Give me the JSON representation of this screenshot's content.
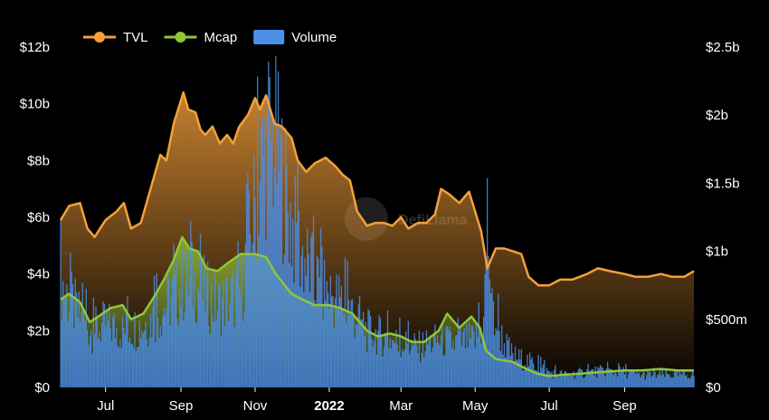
{
  "chart_data": {
    "type": "area",
    "watermark": "DefiLlama",
    "legend_position": "top-left",
    "legend": [
      {
        "name": "TVL",
        "color": "#f5a03a",
        "kind": "line"
      },
      {
        "name": "Mcap",
        "color": "#8fc63a",
        "kind": "line"
      },
      {
        "name": "Volume",
        "color": "#4c8fe8",
        "kind": "bar"
      }
    ],
    "x_range": [
      "2021-05-25",
      "2022-10-28"
    ],
    "x_ticks": [
      {
        "label": "Jul",
        "date": "2021-07-01",
        "bold": false
      },
      {
        "label": "Sep",
        "date": "2021-09-01",
        "bold": false
      },
      {
        "label": "Nov",
        "date": "2021-11-01",
        "bold": false
      },
      {
        "label": "2022",
        "date": "2022-01-01",
        "bold": true
      },
      {
        "label": "Mar",
        "date": "2022-03-01",
        "bold": false
      },
      {
        "label": "May",
        "date": "2022-05-01",
        "bold": false
      },
      {
        "label": "Jul",
        "date": "2022-07-01",
        "bold": false
      },
      {
        "label": "Sep",
        "date": "2022-09-01",
        "bold": false
      }
    ],
    "y_left": {
      "range": [
        0,
        12
      ],
      "unit": "billion USD",
      "ticks": [
        {
          "v": 0,
          "label": "$0"
        },
        {
          "v": 2,
          "label": "$2b"
        },
        {
          "v": 4,
          "label": "$4b"
        },
        {
          "v": 6,
          "label": "$6b"
        },
        {
          "v": 8,
          "label": "$8b"
        },
        {
          "v": 10,
          "label": "$10b"
        },
        {
          "v": 12,
          "label": "$12b"
        }
      ]
    },
    "y_right": {
      "range": [
        0,
        2.5
      ],
      "unit": "billion USD",
      "ticks": [
        {
          "v": 0,
          "label": "$0"
        },
        {
          "v": 0.5,
          "label": "$500m"
        },
        {
          "v": 1,
          "label": "$1b"
        },
        {
          "v": 1.5,
          "label": "$1.5b"
        },
        {
          "v": 2,
          "label": "$2b"
        },
        {
          "v": 2.5,
          "label": "$2.5b"
        }
      ]
    },
    "series": [
      {
        "name": "TVL",
        "axis": "left",
        "color": "#f5a03a",
        "points": [
          [
            "2021-05-25",
            5.9
          ],
          [
            "2021-06-01",
            6.4
          ],
          [
            "2021-06-10",
            6.5
          ],
          [
            "2021-06-16",
            5.6
          ],
          [
            "2021-06-22",
            5.3
          ],
          [
            "2021-07-01",
            5.9
          ],
          [
            "2021-07-10",
            6.2
          ],
          [
            "2021-07-16",
            6.5
          ],
          [
            "2021-07-22",
            5.6
          ],
          [
            "2021-07-30",
            5.8
          ],
          [
            "2021-08-07",
            7.0
          ],
          [
            "2021-08-15",
            8.2
          ],
          [
            "2021-08-20",
            8.0
          ],
          [
            "2021-08-26",
            9.3
          ],
          [
            "2021-09-03",
            10.4
          ],
          [
            "2021-09-07",
            9.8
          ],
          [
            "2021-09-13",
            9.7
          ],
          [
            "2021-09-17",
            9.1
          ],
          [
            "2021-09-21",
            8.9
          ],
          [
            "2021-09-27",
            9.2
          ],
          [
            "2021-10-03",
            8.6
          ],
          [
            "2021-10-09",
            8.9
          ],
          [
            "2021-10-14",
            8.6
          ],
          [
            "2021-10-19",
            9.2
          ],
          [
            "2021-10-26",
            9.6
          ],
          [
            "2021-11-01",
            10.2
          ],
          [
            "2021-11-05",
            9.8
          ],
          [
            "2021-11-10",
            10.3
          ],
          [
            "2021-11-17",
            9.3
          ],
          [
            "2021-11-23",
            9.2
          ],
          [
            "2021-12-01",
            8.8
          ],
          [
            "2021-12-06",
            8.0
          ],
          [
            "2021-12-13",
            7.6
          ],
          [
            "2021-12-20",
            7.9
          ],
          [
            "2021-12-29",
            8.1
          ],
          [
            "2022-01-06",
            7.8
          ],
          [
            "2022-01-12",
            7.5
          ],
          [
            "2022-01-18",
            7.3
          ],
          [
            "2022-01-24",
            6.2
          ],
          [
            "2022-02-01",
            5.7
          ],
          [
            "2022-02-08",
            5.8
          ],
          [
            "2022-02-15",
            5.8
          ],
          [
            "2022-02-22",
            5.7
          ],
          [
            "2022-03-01",
            6.0
          ],
          [
            "2022-03-07",
            5.6
          ],
          [
            "2022-03-15",
            5.8
          ],
          [
            "2022-03-22",
            5.8
          ],
          [
            "2022-03-29",
            6.1
          ],
          [
            "2022-04-03",
            7.0
          ],
          [
            "2022-04-10",
            6.8
          ],
          [
            "2022-04-18",
            6.5
          ],
          [
            "2022-04-26",
            6.9
          ],
          [
            "2022-05-01",
            6.2
          ],
          [
            "2022-05-06",
            5.5
          ],
          [
            "2022-05-11",
            4.2
          ],
          [
            "2022-05-18",
            4.9
          ],
          [
            "2022-05-25",
            4.9
          ],
          [
            "2022-06-01",
            4.8
          ],
          [
            "2022-06-08",
            4.7
          ],
          [
            "2022-06-14",
            3.9
          ],
          [
            "2022-06-22",
            3.6
          ],
          [
            "2022-07-01",
            3.6
          ],
          [
            "2022-07-10",
            3.8
          ],
          [
            "2022-07-20",
            3.8
          ],
          [
            "2022-08-01",
            4.0
          ],
          [
            "2022-08-10",
            4.2
          ],
          [
            "2022-08-20",
            4.1
          ],
          [
            "2022-09-01",
            4.0
          ],
          [
            "2022-09-10",
            3.9
          ],
          [
            "2022-09-20",
            3.9
          ],
          [
            "2022-10-01",
            4.0
          ],
          [
            "2022-10-10",
            3.9
          ],
          [
            "2022-10-20",
            3.9
          ],
          [
            "2022-10-28",
            4.1
          ]
        ]
      },
      {
        "name": "Mcap",
        "axis": "left",
        "color": "#8fc63a",
        "points": [
          [
            "2021-05-25",
            3.1
          ],
          [
            "2021-06-01",
            3.3
          ],
          [
            "2021-06-10",
            3.0
          ],
          [
            "2021-06-18",
            2.3
          ],
          [
            "2021-06-25",
            2.5
          ],
          [
            "2021-07-05",
            2.8
          ],
          [
            "2021-07-15",
            2.9
          ],
          [
            "2021-07-22",
            2.4
          ],
          [
            "2021-08-01",
            2.6
          ],
          [
            "2021-08-10",
            3.2
          ],
          [
            "2021-08-18",
            3.8
          ],
          [
            "2021-08-26",
            4.5
          ],
          [
            "2021-09-02",
            5.3
          ],
          [
            "2021-09-08",
            4.9
          ],
          [
            "2021-09-15",
            4.8
          ],
          [
            "2021-09-22",
            4.2
          ],
          [
            "2021-10-01",
            4.1
          ],
          [
            "2021-10-10",
            4.4
          ],
          [
            "2021-10-20",
            4.7
          ],
          [
            "2021-11-01",
            4.7
          ],
          [
            "2021-11-10",
            4.6
          ],
          [
            "2021-11-18",
            4.0
          ],
          [
            "2021-12-01",
            3.3
          ],
          [
            "2021-12-10",
            3.1
          ],
          [
            "2021-12-20",
            2.9
          ],
          [
            "2022-01-01",
            2.9
          ],
          [
            "2022-01-10",
            2.8
          ],
          [
            "2022-01-20",
            2.6
          ],
          [
            "2022-02-01",
            2.0
          ],
          [
            "2022-02-10",
            1.8
          ],
          [
            "2022-02-20",
            1.9
          ],
          [
            "2022-03-01",
            1.8
          ],
          [
            "2022-03-10",
            1.6
          ],
          [
            "2022-03-20",
            1.6
          ],
          [
            "2022-04-01",
            2.0
          ],
          [
            "2022-04-08",
            2.6
          ],
          [
            "2022-04-18",
            2.1
          ],
          [
            "2022-04-28",
            2.5
          ],
          [
            "2022-05-05",
            2.1
          ],
          [
            "2022-05-10",
            1.3
          ],
          [
            "2022-05-18",
            1.0
          ],
          [
            "2022-06-01",
            0.9
          ],
          [
            "2022-06-10",
            0.7
          ],
          [
            "2022-06-20",
            0.5
          ],
          [
            "2022-07-01",
            0.4
          ],
          [
            "2022-07-15",
            0.45
          ],
          [
            "2022-08-01",
            0.5
          ],
          [
            "2022-08-15",
            0.55
          ],
          [
            "2022-09-01",
            0.6
          ],
          [
            "2022-09-15",
            0.6
          ],
          [
            "2022-10-01",
            0.65
          ],
          [
            "2022-10-15",
            0.6
          ],
          [
            "2022-10-28",
            0.6
          ]
        ]
      },
      {
        "name": "Volume",
        "axis": "right",
        "color": "#4c8fe8",
        "points": [
          [
            "2021-05-25",
            0.85
          ],
          [
            "2021-06-01",
            0.7
          ],
          [
            "2021-06-10",
            0.55
          ],
          [
            "2021-06-20",
            0.45
          ],
          [
            "2021-07-01",
            0.5
          ],
          [
            "2021-07-15",
            0.45
          ],
          [
            "2021-08-01",
            0.5
          ],
          [
            "2021-08-15",
            0.6
          ],
          [
            "2021-09-01",
            0.8
          ],
          [
            "2021-09-10",
            0.85
          ],
          [
            "2021-09-20",
            0.75
          ],
          [
            "2021-10-01",
            0.65
          ],
          [
            "2021-10-10",
            0.7
          ],
          [
            "2021-10-20",
            0.75
          ],
          [
            "2021-10-28",
            1.2
          ],
          [
            "2021-11-05",
            1.7
          ],
          [
            "2021-11-12",
            2.0
          ],
          [
            "2021-11-18",
            1.9
          ],
          [
            "2021-11-25",
            1.6
          ],
          [
            "2021-12-01",
            1.3
          ],
          [
            "2021-12-10",
            1.05
          ],
          [
            "2021-12-20",
            0.85
          ],
          [
            "2022-01-01",
            0.75
          ],
          [
            "2022-01-15",
            0.65
          ],
          [
            "2022-01-25",
            0.55
          ],
          [
            "2022-02-01",
            0.45
          ],
          [
            "2022-02-15",
            0.4
          ],
          [
            "2022-03-01",
            0.35
          ],
          [
            "2022-03-15",
            0.32
          ],
          [
            "2022-04-01",
            0.38
          ],
          [
            "2022-04-15",
            0.35
          ],
          [
            "2022-05-01",
            0.38
          ],
          [
            "2022-05-08",
            0.5
          ],
          [
            "2022-05-11",
            1.35
          ],
          [
            "2022-05-15",
            0.6
          ],
          [
            "2022-05-25",
            0.35
          ],
          [
            "2022-06-01",
            0.25
          ],
          [
            "2022-06-15",
            0.2
          ],
          [
            "2022-07-01",
            0.12
          ],
          [
            "2022-07-15",
            0.1
          ],
          [
            "2022-08-01",
            0.12
          ],
          [
            "2022-08-15",
            0.13
          ],
          [
            "2022-09-01",
            0.12
          ],
          [
            "2022-09-15",
            0.1
          ],
          [
            "2022-10-01",
            0.1
          ],
          [
            "2022-10-15",
            0.1
          ],
          [
            "2022-10-28",
            0.1
          ]
        ]
      }
    ]
  }
}
